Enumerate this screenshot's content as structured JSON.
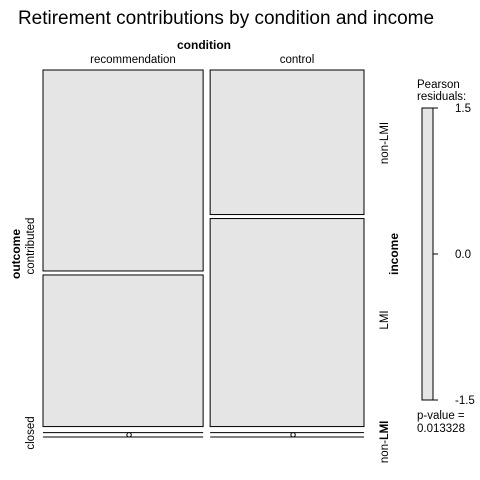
{
  "chart_data": {
    "type": "mosaic",
    "title": "Retirement contributions by condition and income",
    "top_variable": "condition",
    "left_variable": "outcome",
    "right_variable": "income",
    "condition_levels": [
      "recommendation",
      "control"
    ],
    "outcome_levels": [
      "contributed",
      "closed"
    ],
    "income_levels_top": [
      "non-LMI",
      "LMI"
    ],
    "income_levels_bottom": [
      "LMI",
      "non-LMI"
    ],
    "tile_fractions": {
      "condition": {
        "recommendation": 0.51,
        "control": 0.49
      },
      "outcome_given_condition": {
        "recommendation": {
          "contributed": 0.985,
          "closed": 0.015
        },
        "control": {
          "contributed": 0.985,
          "closed": 0.015
        }
      },
      "income_given_condition_contributed": {
        "recommendation": {
          "non-LMI": 0.57,
          "LMI": 0.43
        },
        "control": {
          "non-LMI": 0.41,
          "LMI": 0.59
        }
      }
    },
    "legend": {
      "title_line1": "Pearson",
      "title_line2": "residuals:",
      "ticks": [
        "1.5",
        "0.0",
        "-1.5"
      ],
      "range": [
        -1.5,
        1.5
      ]
    },
    "p_value_label": "p-value =",
    "p_value": "0.013328"
  }
}
